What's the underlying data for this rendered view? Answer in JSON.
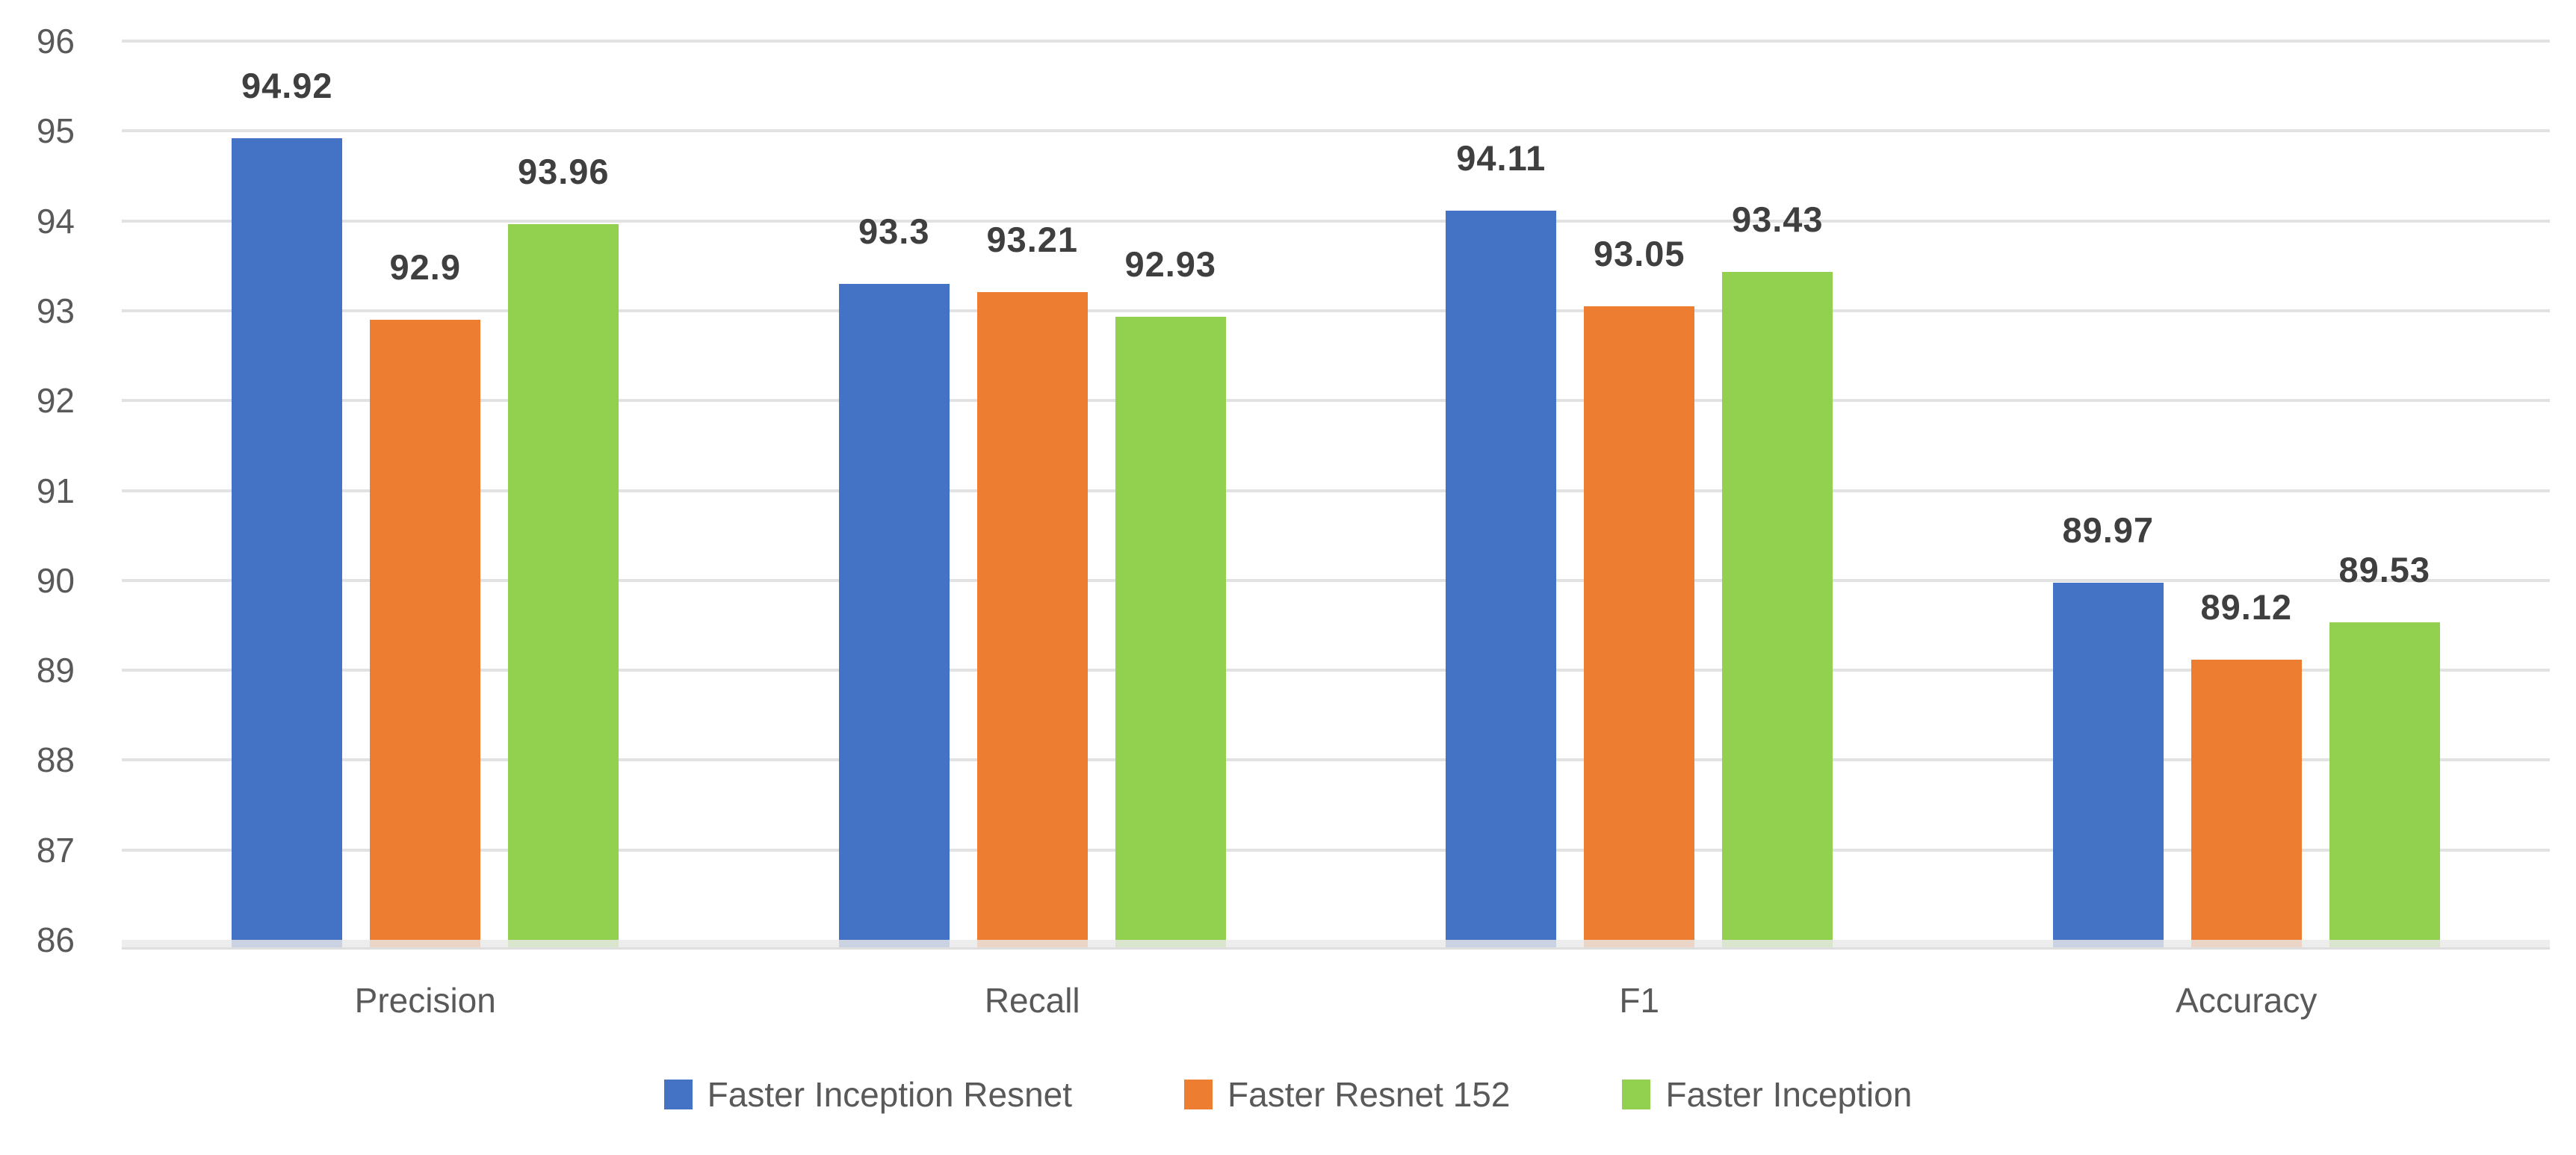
{
  "chart_data": {
    "type": "bar",
    "title": "",
    "categories": [
      "Precision",
      "Recall",
      "F1",
      "Accuracy"
    ],
    "series": [
      {
        "name": "Faster Inception Resnet",
        "color": "#4472C4",
        "values": [
          94.92,
          93.3,
          94.11,
          89.97
        ],
        "labels": [
          "94.92",
          "93.3",
          "94.11",
          "89.97"
        ]
      },
      {
        "name": "Faster Resnet 152",
        "color": "#ED7D31",
        "values": [
          92.9,
          93.21,
          93.05,
          89.12
        ],
        "labels": [
          "92.9",
          "93.21",
          "93.05",
          "89.12"
        ]
      },
      {
        "name": "Faster Inception",
        "color": "#92D050",
        "values": [
          93.96,
          92.93,
          93.43,
          89.53
        ],
        "labels": [
          "93.96",
          "92.93",
          "93.43",
          "89.53"
        ]
      }
    ],
    "y_axis": {
      "min": 86,
      "max": 96,
      "step": 1,
      "tick_labels": [
        "96",
        "95",
        "94",
        "93",
        "92",
        "91",
        "90",
        "89",
        "88",
        "87",
        "86"
      ]
    },
    "x_axis": {
      "tick_labels": [
        "Precision",
        "Recall",
        "F1",
        "Accuracy"
      ]
    },
    "grid": true,
    "legend_position": "bottom"
  },
  "colors": {
    "gridline": "#E2E2E2",
    "axis_band": "#E9E9E9",
    "tick_text": "#595959",
    "data_label_text": "#3F3F3F",
    "background": "#FFFFFF"
  }
}
